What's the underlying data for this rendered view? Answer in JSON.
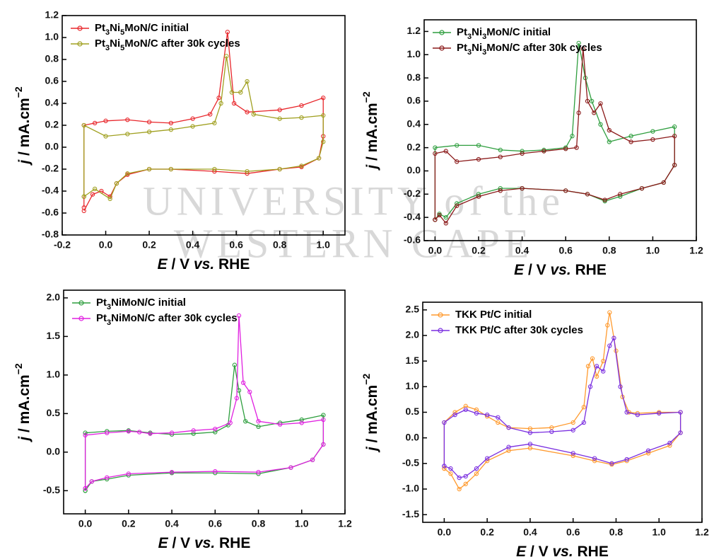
{
  "watermark": [
    "UNIVERSITY of the",
    "WESTERN CAPE"
  ],
  "chart_data": [
    {
      "type": "line",
      "xlabel": "E / V vs. RHE",
      "ylabel": "j / mA.cm−2",
      "legend": "upper left",
      "xlim": [
        -0.2,
        1.1
      ],
      "ylim": [
        -0.8,
        1.2
      ],
      "xticks": [
        -0.2,
        {
          "value": 0,
          "label": "0.0"
        },
        0.2,
        0.4,
        0.6,
        0.8,
        {
          "value": 1,
          "label": "1.0"
        }
      ],
      "yticks": [
        -0.8,
        -0.6,
        -0.4,
        -0.2,
        {
          "value": 0,
          "label": "0.0"
        },
        0.2,
        0.4,
        0.6,
        0.8,
        {
          "value": 1,
          "label": "1.0"
        },
        1.2
      ],
      "series": [
        {
          "name": "Pt3Ni5MoN/C initial",
          "color": "#e8262b",
          "x": [
            -0.1,
            -0.1,
            -0.05,
            0,
            0.1,
            0.2,
            0.3,
            0.4,
            0.48,
            0.52,
            0.56,
            0.59,
            0.65,
            0.8,
            0.9,
            1.0,
            1.0,
            0.98,
            0.9,
            0.8,
            0.65,
            0.5,
            0.3,
            0.2,
            0.1,
            0.05,
            0.02,
            -0.02,
            -0.06,
            -0.1
          ],
          "values": [
            -0.55,
            0.2,
            0.22,
            0.24,
            0.25,
            0.23,
            0.22,
            0.26,
            0.3,
            0.45,
            1.05,
            0.4,
            0.32,
            0.34,
            0.38,
            0.45,
            0.1,
            -0.1,
            -0.18,
            -0.2,
            -0.24,
            -0.22,
            -0.2,
            -0.2,
            -0.25,
            -0.33,
            -0.45,
            -0.4,
            -0.43,
            -0.58
          ]
        },
        {
          "name": "Pt3Ni5MoN/C after 30k cycles",
          "color": "#a0a020",
          "x": [
            -0.1,
            -0.1,
            0,
            0.1,
            0.2,
            0.3,
            0.4,
            0.5,
            0.53,
            0.555,
            0.58,
            0.62,
            0.65,
            0.68,
            0.8,
            0.9,
            1.0,
            1.0,
            0.98,
            0.9,
            0.8,
            0.65,
            0.5,
            0.3,
            0.2,
            0.1,
            0.05,
            0.02,
            -0.05,
            -0.1
          ],
          "values": [
            -0.45,
            0.2,
            0.1,
            0.12,
            0.14,
            0.16,
            0.19,
            0.22,
            0.4,
            0.83,
            0.5,
            0.5,
            0.6,
            0.3,
            0.26,
            0.27,
            0.29,
            0.05,
            -0.1,
            -0.17,
            -0.2,
            -0.22,
            -0.2,
            -0.2,
            -0.2,
            -0.24,
            -0.33,
            -0.47,
            -0.38,
            -0.45
          ]
        }
      ]
    },
    {
      "type": "line",
      "xlabel": "E / V vs. RHE",
      "ylabel": "j / mA.cm−2",
      "legend": "upper left",
      "xlim": [
        -0.05,
        1.2
      ],
      "ylim": [
        -0.6,
        1.3
      ],
      "xticks": [
        {
          "value": 0,
          "label": "0.0"
        },
        0.2,
        0.4,
        0.6,
        0.8,
        {
          "value": 1,
          "label": "1.0"
        },
        1.2
      ],
      "yticks": [
        -0.6,
        -0.4,
        -0.2,
        {
          "value": 0,
          "label": "0.0"
        },
        0.2,
        0.4,
        0.6,
        0.8,
        {
          "value": 1,
          "label": "1.0"
        },
        1.2
      ],
      "series": [
        {
          "name": "Pt3Ni3MoN/C initial",
          "color": "#2e9e3e",
          "x": [
            0,
            0,
            0.1,
            0.2,
            0.3,
            0.4,
            0.5,
            0.6,
            0.63,
            0.66,
            0.69,
            0.72,
            0.76,
            0.8,
            0.9,
            1.0,
            1.1,
            1.1,
            1.05,
            0.95,
            0.85,
            0.78,
            0.7,
            0.6,
            0.4,
            0.3,
            0.2,
            0.1,
            0.05,
            0.02,
            0
          ],
          "values": [
            -0.42,
            0.2,
            0.22,
            0.22,
            0.18,
            0.17,
            0.18,
            0.2,
            0.3,
            1.1,
            0.8,
            0.6,
            0.4,
            0.25,
            0.3,
            0.34,
            0.38,
            0.05,
            -0.1,
            -0.15,
            -0.22,
            -0.26,
            -0.2,
            -0.17,
            -0.15,
            -0.15,
            -0.2,
            -0.28,
            -0.4,
            -0.37,
            -0.42
          ]
        },
        {
          "name": "Pt3Ni3MoN/C after 30k cycles",
          "color": "#8b1a1a",
          "x": [
            0,
            0,
            0.05,
            0.1,
            0.2,
            0.3,
            0.4,
            0.5,
            0.6,
            0.65,
            0.66,
            0.68,
            0.7,
            0.73,
            0.76,
            0.8,
            0.9,
            1.0,
            1.1,
            1.1,
            1.05,
            0.95,
            0.85,
            0.78,
            0.7,
            0.6,
            0.4,
            0.3,
            0.2,
            0.1,
            0.05,
            0.02,
            0
          ],
          "values": [
            -0.42,
            0.15,
            0.17,
            0.08,
            0.1,
            0.12,
            0.15,
            0.17,
            0.19,
            0.2,
            0.5,
            1.05,
            0.6,
            0.5,
            0.58,
            0.35,
            0.25,
            0.27,
            0.3,
            0.05,
            -0.1,
            -0.15,
            -0.2,
            -0.25,
            -0.2,
            -0.17,
            -0.15,
            -0.17,
            -0.22,
            -0.3,
            -0.45,
            -0.38,
            -0.42
          ]
        }
      ]
    },
    {
      "type": "line",
      "xlabel": "E / V vs. RHE",
      "ylabel": "j / mA.cm−2",
      "legend": "upper left",
      "xlim": [
        -0.1,
        1.2
      ],
      "ylim": [
        -0.8,
        2.1
      ],
      "xticks": [
        {
          "value": 0,
          "label": "0.0"
        },
        0.2,
        0.4,
        0.6,
        0.8,
        {
          "value": 1,
          "label": "1.0"
        },
        1.2
      ],
      "yticks": [
        -0.5,
        {
          "value": 0,
          "label": "0.0"
        },
        0.5,
        {
          "value": 1,
          "label": "1.0"
        },
        1.5,
        {
          "value": 2,
          "label": "2.0"
        }
      ],
      "series": [
        {
          "name": "Pt3NiMoN/C initial",
          "color": "#2e9e3e",
          "x": [
            0,
            0,
            0.1,
            0.2,
            0.3,
            0.4,
            0.5,
            0.6,
            0.66,
            0.69,
            0.71,
            0.74,
            0.8,
            0.9,
            1.0,
            1.1,
            1.1,
            1.05,
            0.95,
            0.8,
            0.6,
            0.4,
            0.2,
            0.1,
            0.03,
            0
          ],
          "values": [
            -0.5,
            0.25,
            0.27,
            0.28,
            0.25,
            0.23,
            0.24,
            0.26,
            0.35,
            1.13,
            0.8,
            0.4,
            0.33,
            0.38,
            0.42,
            0.48,
            0.1,
            -0.1,
            -0.2,
            -0.28,
            -0.27,
            -0.27,
            -0.3,
            -0.35,
            -0.38,
            -0.5
          ]
        },
        {
          "name": "Pt3NiMoN/C after 30k cycles",
          "color": "#e020e0",
          "x": [
            0,
            0,
            0.1,
            0.2,
            0.25,
            0.3,
            0.4,
            0.5,
            0.6,
            0.67,
            0.7,
            0.71,
            0.73,
            0.76,
            0.8,
            0.9,
            1.0,
            1.1,
            1.1,
            1.05,
            0.95,
            0.8,
            0.6,
            0.4,
            0.2,
            0.1,
            0.03,
            0
          ],
          "values": [
            -0.47,
            0.22,
            0.25,
            0.27,
            0.26,
            0.24,
            0.25,
            0.28,
            0.3,
            0.38,
            0.7,
            1.77,
            0.9,
            0.78,
            0.4,
            0.36,
            0.38,
            0.42,
            0.1,
            -0.1,
            -0.2,
            -0.26,
            -0.25,
            -0.26,
            -0.28,
            -0.33,
            -0.38,
            -0.47
          ]
        }
      ]
    },
    {
      "type": "line",
      "xlabel": "E / V vs. RHE",
      "ylabel": "j / mA.cm−2",
      "legend": "upper left",
      "xlim": [
        -0.1,
        1.2
      ],
      "ylim": [
        -1.65,
        2.65
      ],
      "xticks": [
        {
          "value": 0,
          "label": "0.0"
        },
        0.2,
        0.4,
        0.6,
        0.8,
        {
          "value": 1,
          "label": "1.0"
        },
        1.2
      ],
      "yticks": [
        -1.5,
        {
          "value": -1,
          "label": "-1.0"
        },
        -0.5,
        {
          "value": 0,
          "label": "0.0"
        },
        0.5,
        {
          "value": 1,
          "label": "1.0"
        },
        1.5,
        {
          "value": 2,
          "label": "2.0"
        },
        2.5
      ],
      "series": [
        {
          "name": "TKK Pt/C initial",
          "color": "#ff9a2e",
          "x": [
            0,
            0,
            0.05,
            0.1,
            0.15,
            0.2,
            0.25,
            0.3,
            0.4,
            0.5,
            0.6,
            0.65,
            0.67,
            0.69,
            0.71,
            0.74,
            0.76,
            0.77,
            0.8,
            0.83,
            0.86,
            0.9,
            1.0,
            1.1,
            1.1,
            1.05,
            0.95,
            0.85,
            0.78,
            0.7,
            0.6,
            0.4,
            0.3,
            0.2,
            0.15,
            0.1,
            0.07,
            0.03,
            0
          ],
          "values": [
            -0.6,
            0.3,
            0.5,
            0.62,
            0.55,
            0.42,
            0.3,
            0.2,
            0.18,
            0.2,
            0.3,
            0.6,
            1.4,
            1.55,
            1.2,
            1.5,
            2.2,
            2.45,
            1.7,
            0.8,
            0.5,
            0.48,
            0.5,
            0.5,
            0.1,
            -0.15,
            -0.3,
            -0.45,
            -0.52,
            -0.45,
            -0.35,
            -0.2,
            -0.25,
            -0.45,
            -0.7,
            -0.9,
            -1.0,
            -0.7,
            -0.6
          ]
        },
        {
          "name": "TKK Pt/C after 30k cycles",
          "color": "#7a2ee0",
          "x": [
            0,
            0,
            0.05,
            0.1,
            0.15,
            0.2,
            0.25,
            0.3,
            0.4,
            0.5,
            0.6,
            0.65,
            0.68,
            0.71,
            0.74,
            0.77,
            0.79,
            0.82,
            0.85,
            0.9,
            1.0,
            1.1,
            1.1,
            1.05,
            0.95,
            0.85,
            0.78,
            0.7,
            0.6,
            0.4,
            0.3,
            0.2,
            0.15,
            0.1,
            0.07,
            0.03,
            0
          ],
          "values": [
            -0.55,
            0.3,
            0.45,
            0.55,
            0.48,
            0.45,
            0.4,
            0.2,
            0.1,
            0.12,
            0.15,
            0.3,
            1.0,
            1.4,
            1.3,
            1.8,
            1.95,
            1.0,
            0.5,
            0.45,
            0.48,
            0.5,
            0.1,
            -0.1,
            -0.25,
            -0.42,
            -0.5,
            -0.4,
            -0.3,
            -0.12,
            -0.18,
            -0.4,
            -0.6,
            -0.75,
            -0.78,
            -0.6,
            -0.55
          ]
        }
      ]
    }
  ]
}
